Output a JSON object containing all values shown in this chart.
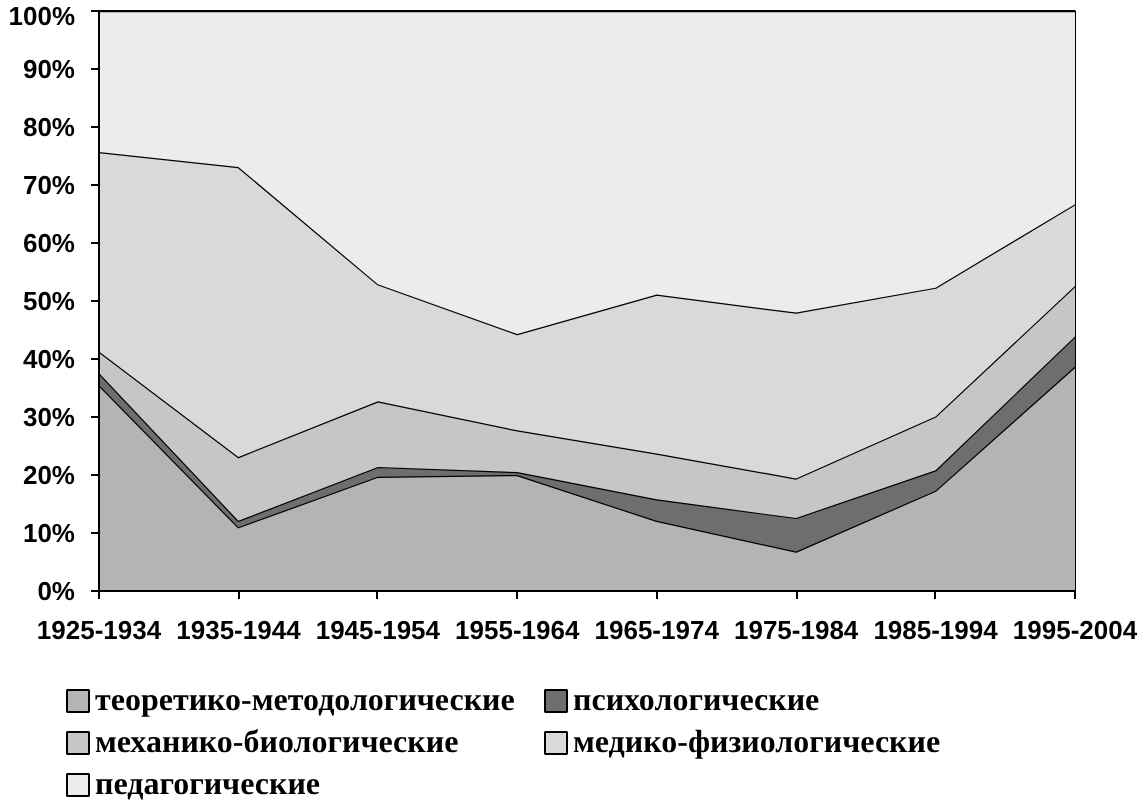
{
  "chart_data": {
    "type": "area",
    "stacked": true,
    "categories": [
      "1925-1934",
      "1935-1944",
      "1945-1954",
      "1955-1964",
      "1965-1974",
      "1975-1984",
      "1985-1994",
      "1995-2004"
    ],
    "series": [
      {
        "name": "теоретико-методологические",
        "color": "#b4b4b4",
        "values": [
          35.5,
          11.0,
          19.7,
          20.0,
          12.1,
          6.8,
          17.3,
          38.7
        ]
      },
      {
        "name": "психологические",
        "color": "#6e6e6e",
        "values": [
          2.1,
          1.1,
          1.7,
          0.5,
          3.7,
          5.8,
          3.5,
          5.2
        ]
      },
      {
        "name": "механико-биологические",
        "color": "#c6c6c6",
        "values": [
          3.7,
          11.0,
          11.3,
          7.2,
          7.9,
          6.8,
          9.3,
          8.7
        ]
      },
      {
        "name": "медико-физиологические",
        "color": "#d9d9d9",
        "values": [
          34.4,
          50.0,
          20.2,
          16.6,
          27.4,
          28.6,
          22.2,
          14.1
        ]
      },
      {
        "name": "педагогические",
        "color": "#ececec",
        "values": [
          24.3,
          26.9,
          47.1,
          55.7,
          48.9,
          52.0,
          47.7,
          33.3
        ]
      }
    ],
    "ylim": [
      0,
      100
    ],
    "yticks": [
      {
        "value": 0,
        "label": "0%"
      },
      {
        "value": 10,
        "label": "10%"
      },
      {
        "value": 20,
        "label": "20%"
      },
      {
        "value": 30,
        "label": "30%"
      },
      {
        "value": 40,
        "label": "40%"
      },
      {
        "value": 50,
        "label": "50%"
      },
      {
        "value": 60,
        "label": "60%"
      },
      {
        "value": 70,
        "label": "70%"
      },
      {
        "value": 80,
        "label": "80%"
      },
      {
        "value": 90,
        "label": "90%"
      },
      {
        "value": 100,
        "label": "100%"
      }
    ],
    "legend": "bottom"
  }
}
